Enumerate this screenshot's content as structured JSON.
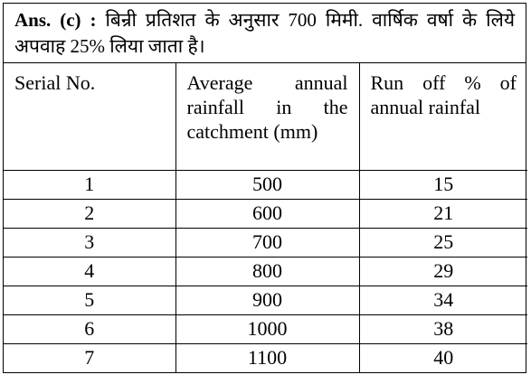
{
  "answer": {
    "label": "Ans. (c) :",
    "text": "बिन्री प्रतिशत के अनुसार 700 मिमी. वार्षिक वर्षा के लिये अपवाह 25% लिया जाता है।"
  },
  "table": {
    "headers": [
      "Serial No.",
      "Average annual rainfall in the catchment (mm)",
      "Run off % of annual rainfal"
    ],
    "rows": [
      [
        "1",
        "500",
        "15"
      ],
      [
        "2",
        "600",
        "21"
      ],
      [
        "3",
        "700",
        "25"
      ],
      [
        "4",
        "800",
        "29"
      ],
      [
        "5",
        "900",
        "34"
      ],
      [
        "6",
        "1000",
        "38"
      ],
      [
        "7",
        "1100",
        "40"
      ]
    ]
  }
}
